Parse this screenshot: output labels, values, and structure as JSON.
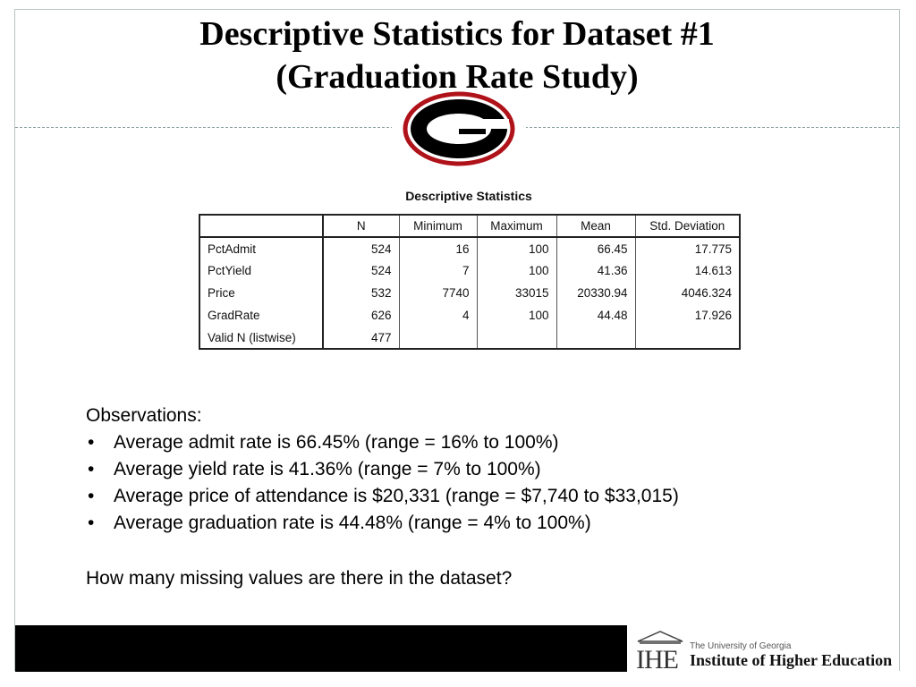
{
  "slide": {
    "title_line1": "Descriptive Statistics for Dataset #1",
    "title_line2": "(Graduation Rate Study)"
  },
  "logo": {
    "letter": "G",
    "colors": {
      "ring": "#b0121a",
      "fill": "#000000"
    }
  },
  "stats": {
    "caption": "Descriptive Statistics",
    "headers": [
      "",
      "N",
      "Minimum",
      "Maximum",
      "Mean",
      "Std. Deviation"
    ],
    "rows": [
      [
        "PctAdmit",
        "524",
        "16",
        "100",
        "66.45",
        "17.775"
      ],
      [
        "PctYield",
        "524",
        "7",
        "100",
        "41.36",
        "14.613"
      ],
      [
        "Price",
        "532",
        "7740",
        "33015",
        "20330.94",
        "4046.324"
      ],
      [
        "GradRate",
        "626",
        "4",
        "100",
        "44.48",
        "17.926"
      ],
      [
        "Valid N (listwise)",
        "477",
        "",
        "",
        "",
        ""
      ]
    ]
  },
  "observations": {
    "heading": "Observations:",
    "bullet_char": "•",
    "items": [
      "Average admit rate is 66.45% (range = 16% to 100%)",
      "Average yield rate is 41.36% (range = 7% to 100%)",
      "Average price of attendance is $20,331 (range = $7,740 to $33,015)",
      "Average graduation rate is 44.48% (range = 4% to 100%)"
    ],
    "question": "How many missing values are there in the dataset?"
  },
  "footer": {
    "mark_text": "IHE",
    "line1": "The University of Georgia",
    "line2": "Institute of Higher Education"
  }
}
